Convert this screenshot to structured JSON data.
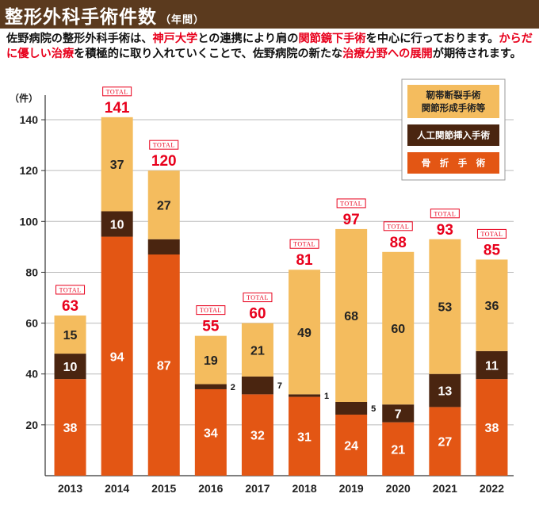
{
  "header": {
    "title": "整形外科手術件数",
    "subtitle": "（年間）"
  },
  "intro": {
    "segments": [
      {
        "text": "佐野病院の整形外科手術は、",
        "highlight": false
      },
      {
        "text": "神戸大学",
        "highlight": true
      },
      {
        "text": "との連携により肩の",
        "highlight": false
      },
      {
        "text": "関節鏡下手術",
        "highlight": true
      },
      {
        "text": "を中心に行っております。",
        "highlight": false
      },
      {
        "text": "からだに優しい治療",
        "highlight": true
      },
      {
        "text": "を積極的に取り入れていくことで、佐野病院の新たな",
        "highlight": false
      },
      {
        "text": "治療分野への展開",
        "highlight": true
      },
      {
        "text": "が期待されます。",
        "highlight": false
      }
    ]
  },
  "colors": {
    "header_bg": "#5b3a1e",
    "highlight": "#e8001c",
    "fracture": "#e35614",
    "joint": "#4a2510",
    "ligament": "#f4bc5e",
    "total": "#e8001c",
    "total_badge_border": "#e8001c"
  },
  "chart_data": {
    "type": "bar",
    "stacked": true,
    "ylabel": "（件）",
    "ylim": [
      0,
      145
    ],
    "yticks": [
      20,
      40,
      60,
      80,
      100,
      120,
      140
    ],
    "grid": true,
    "total_badge_label": "TOTAL",
    "categories": [
      "2013",
      "2014",
      "2015",
      "2016",
      "2017",
      "2018",
      "2019",
      "2020",
      "2021",
      "2022"
    ],
    "series": [
      {
        "name": "骨　折　手　術",
        "key": "fracture",
        "values": [
          38,
          94,
          87,
          34,
          32,
          31,
          24,
          21,
          27,
          38
        ]
      },
      {
        "name": "人工関節挿入手術",
        "key": "joint",
        "values": [
          10,
          10,
          6,
          2,
          7,
          1,
          5,
          7,
          13,
          11
        ]
      },
      {
        "name": "靭帯断裂手術\n関節形成手術等",
        "key": "ligament",
        "values": [
          15,
          37,
          27,
          19,
          21,
          49,
          68,
          60,
          53,
          36
        ]
      }
    ],
    "totals": [
      63,
      141,
      120,
      55,
      60,
      81,
      97,
      88,
      93,
      85
    ],
    "value_labels": {
      "fracture": [
        "38",
        "94",
        "87",
        "34",
        "32",
        "31",
        "24",
        "21",
        "27",
        "38"
      ],
      "joint": [
        "10",
        "10",
        "",
        "2",
        "7",
        "1",
        "5",
        "7",
        "13",
        "11"
      ],
      "ligament": [
        "15",
        "37",
        "27",
        "19",
        "21",
        "49",
        "68",
        "60",
        "53",
        "36"
      ]
    },
    "joint_label_outside": [
      false,
      false,
      false,
      true,
      true,
      true,
      true,
      false,
      false,
      false
    ],
    "legend_position": "top-right"
  }
}
